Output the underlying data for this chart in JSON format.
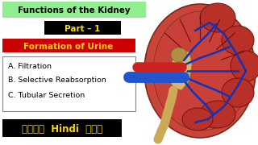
{
  "title": "Functions of the Kidney",
  "title_bg": "#90EE90",
  "title_fg": "#000000",
  "part_text": "Part – 1",
  "part_bg": "#000000",
  "part_fg": "#FFD700",
  "formation_text": "Formation of Urine",
  "formation_bg": "#CC0000",
  "formation_fg": "#FFD700",
  "items": [
    "A. Filtration",
    "B. Selective Reabsorption",
    "C. Tubular Secretion"
  ],
  "items_box_edge": "#888888",
  "hindi_text": "जाने  Hindi  में",
  "hindi_bg": "#000000",
  "hindi_fg": "#FFD700",
  "bg_color": "#FFFFFF",
  "kidney_outer_color": "#c9453a",
  "kidney_outer_edge": "#7a2a1a",
  "kidney_inner_color": "#d4614a",
  "kidney_lobe_color": "#b83028",
  "kidney_lobe_edge": "#7a1a10",
  "kidney_pelvis_color": "#d4b86a",
  "kidney_pelvis_edge": "#9a8030",
  "artery_color": "#cc2222",
  "vein_color": "#2255cc",
  "vessel_color": "#1133bb",
  "ureter_color": "#ccaa55"
}
